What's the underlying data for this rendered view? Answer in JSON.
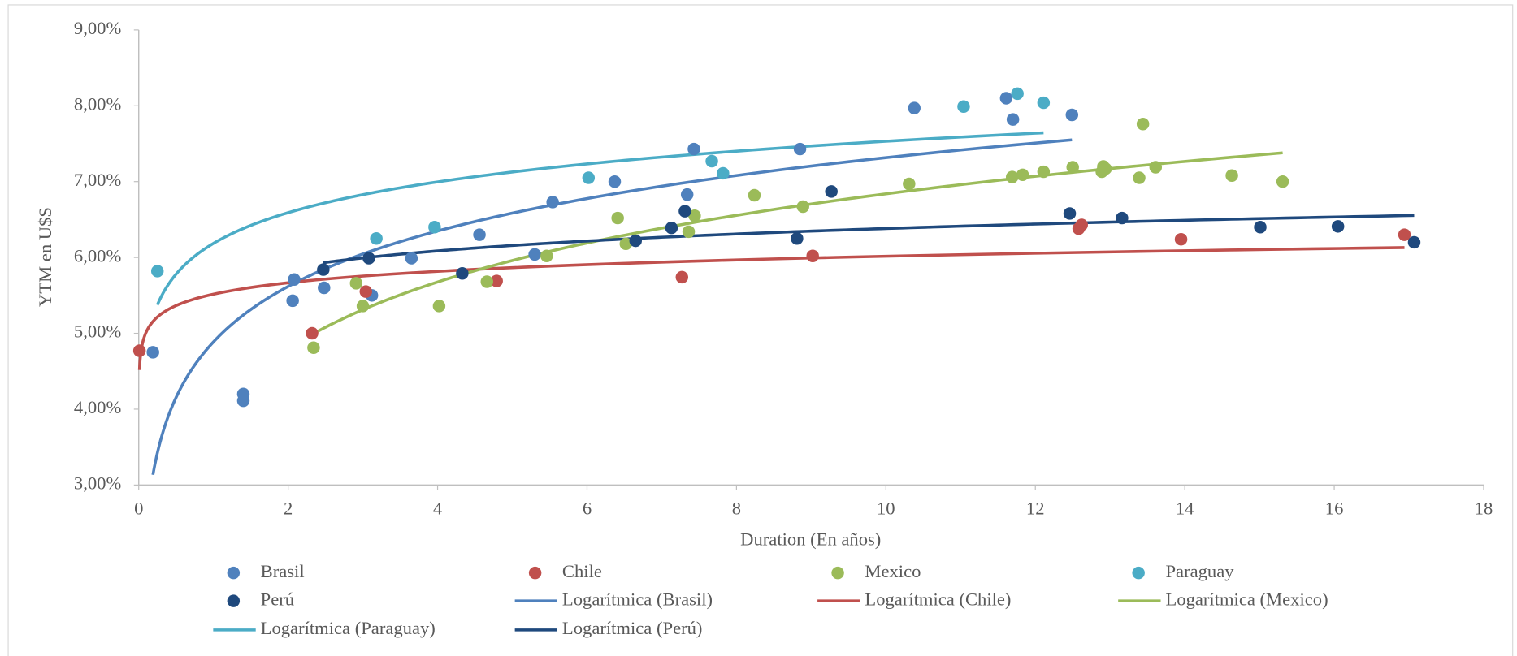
{
  "chart_data": {
    "type": "scatter",
    "x_label": "Duration (En años)",
    "y_label": "YTM en U$S",
    "xlim": [
      0,
      18
    ],
    "xticks": [
      0,
      2,
      4,
      6,
      8,
      10,
      12,
      14,
      16,
      18
    ],
    "ylim": [
      3,
      9
    ],
    "yticks": [
      {
        "value": 3,
        "label": "3,00%"
      },
      {
        "value": 4,
        "label": "4,00%"
      },
      {
        "value": 5,
        "label": "5,00%"
      },
      {
        "value": 6,
        "label": "6,00%"
      },
      {
        "value": 7,
        "label": "7,00%"
      },
      {
        "value": 8,
        "label": "8,00%"
      },
      {
        "value": 9,
        "label": "9,00%"
      }
    ],
    "grid": false,
    "legend": "bottom",
    "trendline": "logarithmic",
    "series": [
      {
        "name": "Brasil",
        "trendline_name": "Logarítmica (Brasil)",
        "color": "#4f81bd",
        "x": [
          0.19,
          1.4,
          1.4,
          2.06,
          2.08,
          2.48,
          3.12,
          3.65,
          4.56,
          5.3,
          5.54,
          6.37,
          7.34,
          7.43,
          8.85,
          10.38,
          11.61,
          11.7,
          12.49
        ],
        "values": [
          4.75,
          4.2,
          4.11,
          5.43,
          5.71,
          5.6,
          5.5,
          5.99,
          6.3,
          6.04,
          6.73,
          7.0,
          6.83,
          7.43,
          7.43,
          7.97,
          8.1,
          7.82,
          7.88
        ]
      },
      {
        "name": "Chile",
        "trendline_name": "Logarítmica (Chile)",
        "color": "#c0504d",
        "x": [
          0.01,
          2.32,
          3.04,
          4.79,
          7.27,
          9.02,
          12.58,
          12.62,
          13.95,
          16.94
        ],
        "values": [
          4.77,
          5.0,
          5.55,
          5.69,
          5.74,
          6.02,
          6.38,
          6.43,
          6.24,
          6.3
        ]
      },
      {
        "name": "Mexico",
        "trendline_name": "Logarítmica (Mexico)",
        "color": "#9bbb59",
        "x": [
          2.34,
          2.91,
          3.0,
          4.02,
          4.66,
          5.46,
          6.41,
          6.52,
          7.36,
          7.44,
          8.24,
          8.89,
          10.31,
          11.69,
          11.83,
          12.11,
          12.5,
          12.89,
          12.91,
          12.94,
          13.39,
          13.44,
          13.61,
          14.63,
          15.31
        ],
        "values": [
          4.81,
          5.66,
          5.36,
          5.36,
          5.68,
          6.02,
          6.52,
          6.18,
          6.34,
          6.55,
          6.82,
          6.67,
          6.97,
          7.06,
          7.09,
          7.13,
          7.19,
          7.13,
          7.2,
          7.17,
          7.05,
          7.76,
          7.19,
          7.08,
          7.0
        ]
      },
      {
        "name": "Paraguay",
        "trendline_name": "Logarítmica (Paraguay)",
        "color": "#4bacc6",
        "x": [
          0.25,
          3.18,
          3.96,
          6.02,
          7.67,
          7.82,
          11.04,
          11.76,
          12.11
        ],
        "values": [
          5.82,
          6.25,
          6.4,
          7.05,
          7.27,
          7.11,
          7.99,
          8.16,
          8.04
        ]
      },
      {
        "name": "Perú",
        "trendline_name": "Logarítmica (Perú)",
        "color": "#1f497d",
        "x": [
          2.47,
          3.08,
          4.33,
          6.65,
          7.13,
          7.31,
          8.81,
          9.27,
          12.46,
          13.16,
          15.01,
          16.05,
          17.07
        ],
        "values": [
          5.84,
          5.99,
          5.79,
          6.22,
          6.39,
          6.61,
          6.25,
          6.87,
          6.58,
          6.52,
          6.4,
          6.41,
          6.2
        ]
      }
    ]
  }
}
